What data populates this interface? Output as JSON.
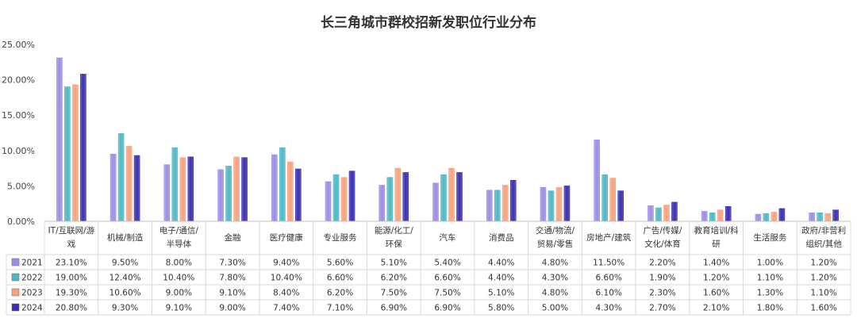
{
  "chart_data": {
    "type": "bar",
    "title": "长三角城市群校招新发职位行业分布",
    "categories": [
      [
        "IT/互联网/游",
        "戏"
      ],
      [
        "机械/制造"
      ],
      [
        "电子/通信/",
        "半导体"
      ],
      [
        "金融"
      ],
      [
        "医疗健康"
      ],
      [
        "专业服务"
      ],
      [
        "能源/化工/",
        "环保"
      ],
      [
        "汽车"
      ],
      [
        "消费品"
      ],
      [
        "交通/物流/",
        "贸易/零售"
      ],
      [
        "房地产/建筑"
      ],
      [
        "广告/传媒/",
        "文化/体育"
      ],
      [
        "教育培训/科",
        "研"
      ],
      [
        "生活服务"
      ],
      [
        "政府/非营利",
        "组织/其他"
      ]
    ],
    "y_ticks": [
      "0.00%",
      "5.00%",
      "10.00%",
      "15.00%",
      "20.00%",
      "25.00%"
    ],
    "ylim": [
      0,
      25
    ],
    "series": [
      {
        "name": "2021",
        "color": "#9b8ee6",
        "values": [
          23.1,
          9.5,
          8.0,
          7.3,
          9.4,
          5.6,
          5.1,
          5.4,
          4.4,
          4.8,
          11.5,
          2.2,
          1.4,
          1.0,
          1.2
        ],
        "labels": [
          "23.10%",
          "9.50%",
          "8.00%",
          "7.30%",
          "9.40%",
          "5.60%",
          "5.10%",
          "5.40%",
          "4.40%",
          "4.80%",
          "11.50%",
          "2.20%",
          "1.40%",
          "1.00%",
          "1.20%"
        ]
      },
      {
        "name": "2022",
        "color": "#4fb8c4",
        "values": [
          19.0,
          12.4,
          10.4,
          7.8,
          10.4,
          6.6,
          6.2,
          6.6,
          4.4,
          4.3,
          6.6,
          1.9,
          1.2,
          1.1,
          1.2
        ],
        "labels": [
          "19.00%",
          "12.40%",
          "10.40%",
          "7.80%",
          "10.40%",
          "6.60%",
          "6.20%",
          "6.60%",
          "4.40%",
          "4.30%",
          "6.60%",
          "1.90%",
          "1.20%",
          "1.10%",
          "1.20%"
        ]
      },
      {
        "name": "2023",
        "color": "#f7a27e",
        "values": [
          19.3,
          10.6,
          9.0,
          9.1,
          8.4,
          6.2,
          7.5,
          7.5,
          5.1,
          4.8,
          6.1,
          2.3,
          1.6,
          1.3,
          1.1
        ],
        "labels": [
          "19.30%",
          "10.60%",
          "9.00%",
          "9.10%",
          "8.40%",
          "6.20%",
          "7.50%",
          "7.50%",
          "5.10%",
          "4.80%",
          "6.10%",
          "2.30%",
          "1.60%",
          "1.30%",
          "1.10%"
        ]
      },
      {
        "name": "2024",
        "color": "#3b2fb0",
        "values": [
          20.8,
          9.3,
          9.1,
          9.0,
          7.4,
          7.1,
          6.9,
          6.9,
          5.8,
          5.0,
          4.3,
          2.7,
          2.1,
          1.8,
          1.6
        ],
        "labels": [
          "20.80%",
          "9.30%",
          "9.10%",
          "9.00%",
          "7.40%",
          "7.10%",
          "6.90%",
          "6.90%",
          "5.80%",
          "5.00%",
          "4.30%",
          "2.70%",
          "2.10%",
          "1.80%",
          "1.60%"
        ]
      }
    ],
    "grid": false,
    "legend": "data-table"
  }
}
